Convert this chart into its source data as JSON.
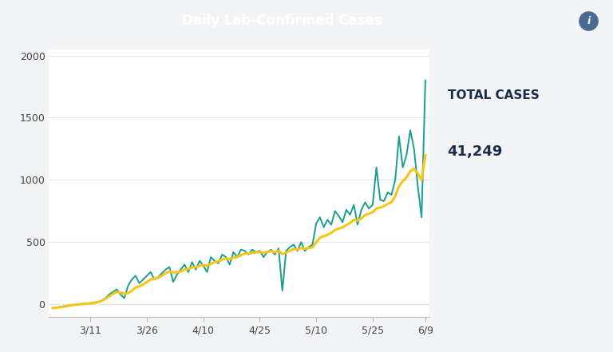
{
  "title": "Daily Lab-Confirmed Cases",
  "title_bg_color": "#6e8499",
  "title_text_color": "#ffffff",
  "chart_bg_color": "#ffffff",
  "outer_bg_color": "#f2f4f6",
  "total_cases_label": "TOTAL CASES",
  "total_cases_value": "41,249",
  "total_cases_color": "#1a2e4a",
  "teal_color": "#1a9e8f",
  "gold_color": "#f5c518",
  "ylim": [
    -100,
    2050
  ],
  "yticks": [
    0,
    500,
    1000,
    1500,
    2000
  ],
  "xtick_labels": [
    "3/11",
    "3/26",
    "4/10",
    "4/25",
    "5/10",
    "5/25",
    "6/9"
  ],
  "xtick_positions": [
    10,
    25,
    40,
    55,
    70,
    85,
    99
  ],
  "daily_cases": [
    -30,
    -25,
    -20,
    -15,
    -10,
    -5,
    -2,
    0,
    5,
    8,
    10,
    15,
    20,
    30,
    50,
    80,
    100,
    120,
    80,
    50,
    150,
    200,
    230,
    170,
    200,
    230,
    260,
    200,
    220,
    250,
    280,
    300,
    180,
    240,
    280,
    320,
    260,
    340,
    280,
    350,
    310,
    260,
    380,
    350,
    330,
    400,
    380,
    320,
    420,
    380,
    440,
    430,
    400,
    440,
    420,
    430,
    380,
    420,
    440,
    400,
    450,
    110,
    430,
    460,
    480,
    430,
    500,
    430,
    460,
    480,
    650,
    700,
    620,
    680,
    640,
    750,
    710,
    660,
    760,
    720,
    800,
    640,
    760,
    820,
    770,
    800,
    1100,
    840,
    830,
    900,
    880,
    1000,
    1350,
    1100,
    1200,
    1400,
    1250,
    950,
    700,
    1800
  ],
  "moving_avg": [
    -30,
    -27,
    -23,
    -18,
    -13,
    -7,
    -3,
    0,
    3,
    6,
    8,
    12,
    18,
    28,
    45,
    65,
    85,
    100,
    95,
    85,
    90,
    110,
    135,
    145,
    160,
    180,
    200,
    205,
    215,
    230,
    250,
    265,
    258,
    258,
    265,
    280,
    285,
    298,
    298,
    310,
    315,
    310,
    325,
    340,
    345,
    360,
    368,
    365,
    375,
    380,
    395,
    408,
    408,
    415,
    418,
    422,
    415,
    420,
    428,
    418,
    432,
    405,
    415,
    430,
    445,
    442,
    452,
    448,
    452,
    458,
    500,
    535,
    548,
    560,
    575,
    598,
    610,
    618,
    638,
    655,
    680,
    672,
    690,
    718,
    728,
    740,
    770,
    778,
    788,
    808,
    820,
    870,
    950,
    990,
    1020,
    1070,
    1090,
    1050,
    1000,
    1200
  ]
}
